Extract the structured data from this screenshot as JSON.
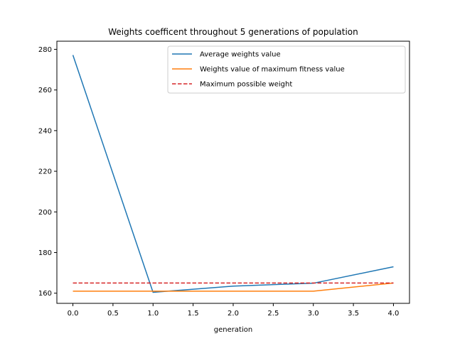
{
  "chart_data": {
    "type": "line",
    "title": "Weights coefficent throughout 5 generations of population",
    "xlabel": "generation",
    "ylabel": "",
    "xlim": [
      -0.2,
      4.2
    ],
    "ylim": [
      155,
      284
    ],
    "xticks": [
      0.0,
      0.5,
      1.0,
      1.5,
      2.0,
      2.5,
      3.0,
      3.5,
      4.0
    ],
    "xtick_labels": [
      "0.0",
      "0.5",
      "1.0",
      "1.5",
      "2.0",
      "2.5",
      "3.0",
      "3.5",
      "4.0"
    ],
    "yticks": [
      160,
      180,
      200,
      220,
      240,
      260,
      280
    ],
    "ytick_labels": [
      "160",
      "180",
      "200",
      "220",
      "240",
      "260",
      "280"
    ],
    "grid": false,
    "legend_position": "upper-right",
    "x": [
      0,
      1,
      2,
      3,
      4
    ],
    "series": [
      {
        "name": "Average weights value",
        "color": "#1f77b4",
        "style": "solid",
        "values": [
          277.2,
          160.4,
          163.5,
          164.9,
          173.0
        ]
      },
      {
        "name": "Weights value of maximum fitness value",
        "color": "#ff7f0e",
        "style": "solid",
        "values": [
          161.0,
          161.0,
          161.0,
          161.0,
          165.0
        ]
      },
      {
        "name": "Maximum possible weight",
        "color": "#d62728",
        "style": "dashed",
        "values": [
          165.0,
          165.0,
          165.0,
          165.0,
          165.0
        ]
      }
    ]
  }
}
